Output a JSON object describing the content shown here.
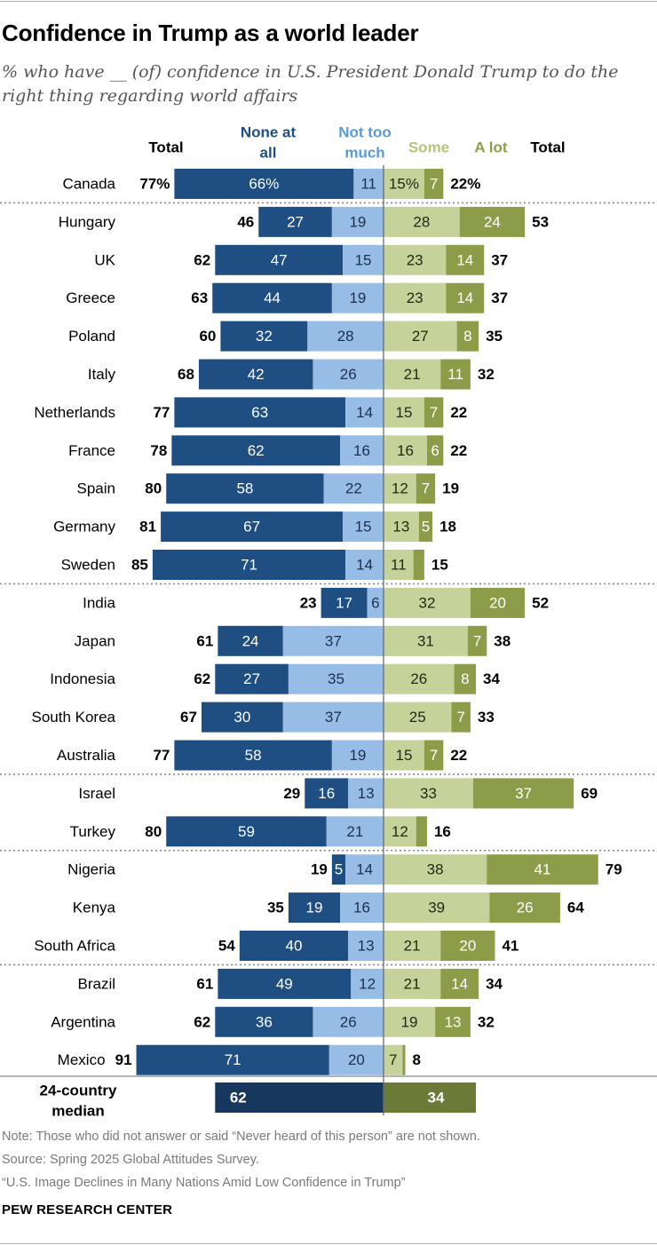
{
  "header": {
    "title": "Confidence in Trump as a world leader",
    "subtitle": "% who have __ (of) confidence in U.S. President Donald Trump to do the right thing regarding world affairs"
  },
  "chart_data": {
    "type": "bar",
    "orientation": "horizontal diverging stacked",
    "columns": {
      "left_total": "Total",
      "none_at_all": "None at all",
      "not_too_much": "Not too much",
      "some": "Some",
      "a_lot": "A lot",
      "right_total": "Total"
    },
    "colors": {
      "none_at_all": "#1f4e82",
      "not_too_much": "#97bde6",
      "some": "#c5d29a",
      "a_lot": "#8c9c48",
      "median_left": "#17375e",
      "median_right": "#6b7a36"
    },
    "rows": [
      {
        "country": "Canada",
        "none": "66%",
        "not_too_much": "11",
        "some": "15%",
        "a_lot": "7",
        "left_total": "77%",
        "right_total": "22%",
        "values": [
          66,
          11,
          15,
          7
        ],
        "totals": [
          77,
          22
        ],
        "group": 0
      },
      {
        "country": "Hungary",
        "none": "27",
        "not_too_much": "19",
        "some": "28",
        "a_lot": "24",
        "left_total": "46",
        "right_total": "53",
        "values": [
          27,
          19,
          28,
          24
        ],
        "totals": [
          46,
          53
        ],
        "group": 1
      },
      {
        "country": "UK",
        "none": "47",
        "not_too_much": "15",
        "some": "23",
        "a_lot": "14",
        "left_total": "62",
        "right_total": "37",
        "values": [
          47,
          15,
          23,
          14
        ],
        "totals": [
          62,
          37
        ],
        "group": 1
      },
      {
        "country": "Greece",
        "none": "44",
        "not_too_much": "19",
        "some": "23",
        "a_lot": "14",
        "left_total": "63",
        "right_total": "37",
        "values": [
          44,
          19,
          23,
          14
        ],
        "totals": [
          63,
          37
        ],
        "group": 1
      },
      {
        "country": "Poland",
        "none": "32",
        "not_too_much": "28",
        "some": "27",
        "a_lot": "8",
        "left_total": "60",
        "right_total": "35",
        "values": [
          32,
          28,
          27,
          8
        ],
        "totals": [
          60,
          35
        ],
        "group": 1
      },
      {
        "country": "Italy",
        "none": "42",
        "not_too_much": "26",
        "some": "21",
        "a_lot": "11",
        "left_total": "68",
        "right_total": "32",
        "values": [
          42,
          26,
          21,
          11
        ],
        "totals": [
          68,
          32
        ],
        "group": 1
      },
      {
        "country": "Netherlands",
        "none": "63",
        "not_too_much": "14",
        "some": "15",
        "a_lot": "7",
        "left_total": "77",
        "right_total": "22",
        "values": [
          63,
          14,
          15,
          7
        ],
        "totals": [
          77,
          22
        ],
        "group": 1
      },
      {
        "country": "France",
        "none": "62",
        "not_too_much": "16",
        "some": "16",
        "a_lot": "6",
        "left_total": "78",
        "right_total": "22",
        "values": [
          62,
          16,
          16,
          6
        ],
        "totals": [
          78,
          22
        ],
        "group": 1
      },
      {
        "country": "Spain",
        "none": "58",
        "not_too_much": "22",
        "some": "12",
        "a_lot": "7",
        "left_total": "80",
        "right_total": "19",
        "values": [
          58,
          22,
          12,
          7
        ],
        "totals": [
          80,
          19
        ],
        "group": 1
      },
      {
        "country": "Germany",
        "none": "67",
        "not_too_much": "15",
        "some": "13",
        "a_lot": "5",
        "left_total": "81",
        "right_total": "18",
        "values": [
          67,
          15,
          13,
          5
        ],
        "totals": [
          81,
          18
        ],
        "group": 1
      },
      {
        "country": "Sweden",
        "none": "71",
        "not_too_much": "14",
        "some": "11",
        "a_lot": "",
        "left_total": "85",
        "right_total": "15",
        "values": [
          71,
          14,
          11,
          4
        ],
        "totals": [
          85,
          15
        ],
        "group": 1
      },
      {
        "country": "India",
        "none": "17",
        "not_too_much": "6",
        "some": "32",
        "a_lot": "20",
        "left_total": "23",
        "right_total": "52",
        "values": [
          17,
          6,
          32,
          20
        ],
        "totals": [
          23,
          52
        ],
        "group": 2
      },
      {
        "country": "Japan",
        "none": "24",
        "not_too_much": "37",
        "some": "31",
        "a_lot": "7",
        "left_total": "61",
        "right_total": "38",
        "values": [
          24,
          37,
          31,
          7
        ],
        "totals": [
          61,
          38
        ],
        "group": 2
      },
      {
        "country": "Indonesia",
        "none": "27",
        "not_too_much": "35",
        "some": "26",
        "a_lot": "8",
        "left_total": "62",
        "right_total": "34",
        "values": [
          27,
          35,
          26,
          8
        ],
        "totals": [
          62,
          34
        ],
        "group": 2
      },
      {
        "country": "South Korea",
        "none": "30",
        "not_too_much": "37",
        "some": "25",
        "a_lot": "7",
        "left_total": "67",
        "right_total": "33",
        "values": [
          30,
          37,
          25,
          7
        ],
        "totals": [
          67,
          33
        ],
        "group": 2
      },
      {
        "country": "Australia",
        "none": "58",
        "not_too_much": "19",
        "some": "15",
        "a_lot": "7",
        "left_total": "77",
        "right_total": "22",
        "values": [
          58,
          19,
          15,
          7
        ],
        "totals": [
          77,
          22
        ],
        "group": 2
      },
      {
        "country": "Israel",
        "none": "16",
        "not_too_much": "13",
        "some": "33",
        "a_lot": "37",
        "left_total": "29",
        "right_total": "69",
        "values": [
          16,
          13,
          33,
          37
        ],
        "totals": [
          29,
          69
        ],
        "group": 3
      },
      {
        "country": "Turkey",
        "none": "59",
        "not_too_much": "21",
        "some": "12",
        "a_lot": "",
        "left_total": "80",
        "right_total": "16",
        "values": [
          59,
          21,
          12,
          4
        ],
        "totals": [
          80,
          16
        ],
        "group": 3
      },
      {
        "country": "Nigeria",
        "none": "5",
        "not_too_much": "14",
        "some": "38",
        "a_lot": "41",
        "left_total": "19",
        "right_total": "79",
        "values": [
          5,
          14,
          38,
          41
        ],
        "totals": [
          19,
          79
        ],
        "group": 4
      },
      {
        "country": "Kenya",
        "none": "19",
        "not_too_much": "16",
        "some": "39",
        "a_lot": "26",
        "left_total": "35",
        "right_total": "64",
        "values": [
          19,
          16,
          39,
          26
        ],
        "totals": [
          35,
          64
        ],
        "group": 4
      },
      {
        "country": "South Africa",
        "none": "40",
        "not_too_much": "13",
        "some": "21",
        "a_lot": "20",
        "left_total": "54",
        "right_total": "41",
        "values": [
          40,
          13,
          21,
          20
        ],
        "totals": [
          54,
          41
        ],
        "group": 4
      },
      {
        "country": "Brazil",
        "none": "49",
        "not_too_much": "12",
        "some": "21",
        "a_lot": "14",
        "left_total": "61",
        "right_total": "34",
        "values": [
          49,
          12,
          21,
          14
        ],
        "totals": [
          61,
          34
        ],
        "group": 5
      },
      {
        "country": "Argentina",
        "none": "36",
        "not_too_much": "26",
        "some": "19",
        "a_lot": "13",
        "left_total": "62",
        "right_total": "32",
        "values": [
          36,
          26,
          19,
          13
        ],
        "totals": [
          62,
          32
        ],
        "group": 5
      },
      {
        "country": "Mexico",
        "none": "71",
        "not_too_much": "20",
        "some": "7",
        "a_lot": "",
        "left_total": "91",
        "right_total": "8",
        "values": [
          71,
          20,
          7,
          1
        ],
        "totals": [
          91,
          8
        ],
        "group": 5
      }
    ],
    "median": {
      "label_line1": "24-country",
      "label_line2": "median",
      "left": "62",
      "right": "34",
      "values": [
        62,
        34
      ]
    }
  },
  "footer": {
    "note": "Note: Those who did not answer or said “Never heard of this person” are not shown.",
    "source": "Source: Spring 2025 Global Attitudes Survey.",
    "report": "“U.S. Image Declines in Many Nations Amid Low Confidence in Trump”",
    "org": "PEW RESEARCH CENTER"
  }
}
